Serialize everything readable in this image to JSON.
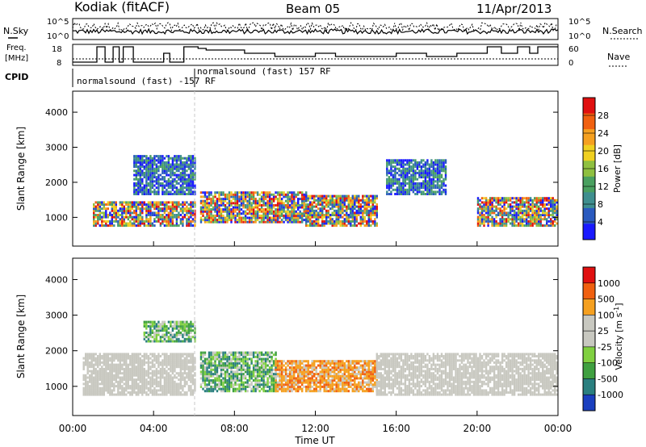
{
  "header": {
    "station": "Kodiak (fitACF)",
    "beam": "Beam 05",
    "date": "11/Apr/2013"
  },
  "panels": {
    "nsky": {
      "label": "N.Sky",
      "right_label": "N.Search",
      "ticks_left": [
        "10^5",
        "10^0"
      ],
      "ticks_right": [
        "10^5",
        "10^0"
      ]
    },
    "freq": {
      "label_line1": "Freq.",
      "label_line2": "[MHz]",
      "right_label": "Nave",
      "ticks_left": [
        "18",
        "8"
      ],
      "ticks_right": [
        "60",
        "0"
      ]
    },
    "cpid": {
      "label": "CPID",
      "programs": [
        "normalsound (fast) -157 RF",
        "normalsound (fast) 157 RF"
      ]
    }
  },
  "chart_data": [
    {
      "type": "heatmap",
      "title": "",
      "xlabel": "",
      "ylabel": "Slant Range [km]",
      "y_ticks": [
        1000,
        2000,
        3000,
        4000
      ],
      "ylim": [
        180,
        4600
      ],
      "colorbar": {
        "label": "Power [dB]",
        "ticks": [
          "28",
          "24",
          "20",
          "16",
          "12",
          "8",
          "4"
        ],
        "range": [
          0,
          30
        ],
        "colors": [
          "#1a1aff",
          "#2a5abf",
          "#3f8f8f",
          "#4aa060",
          "#8fc040",
          "#f0d020",
          "#f5a020",
          "#f06010",
          "#e01010"
        ]
      },
      "scatter_bands": [
        {
          "t_start": 1.0,
          "t_end": 6.0,
          "r_low": 800,
          "r_high": 1500,
          "level": "high"
        },
        {
          "t_start": 6.3,
          "t_end": 11.5,
          "r_low": 900,
          "r_high": 1800,
          "level": "high"
        },
        {
          "t_start": 11.5,
          "t_end": 15.0,
          "r_low": 800,
          "r_high": 1700,
          "level": "high"
        },
        {
          "t_start": 15.5,
          "t_end": 18.5,
          "r_low": 1700,
          "r_high": 2700,
          "level": "mid"
        },
        {
          "t_start": 20.0,
          "t_end": 24.0,
          "r_low": 800,
          "r_high": 1600,
          "level": "high"
        },
        {
          "t_start": 3.0,
          "t_end": 6.0,
          "r_low": 1700,
          "r_high": 2800,
          "level": "mid"
        }
      ]
    },
    {
      "type": "heatmap",
      "title": "",
      "xlabel": "Time UT",
      "ylabel": "Slant Range [km]",
      "y_ticks": [
        1000,
        2000,
        3000,
        4000
      ],
      "ylim": [
        180,
        4600
      ],
      "x_ticks": [
        "00:00",
        "04:00",
        "08:00",
        "12:00",
        "16:00",
        "20:00",
        "00:00"
      ],
      "xlim": [
        0,
        24
      ],
      "colorbar": {
        "label": "Velocity [m s",
        "label_sup": "-1",
        "label_end": "]",
        "ticks": [
          "1000",
          "500",
          "100",
          "25",
          "-25",
          "-100",
          "-500",
          "-1000"
        ],
        "range": [
          -1000,
          1000
        ],
        "colors": [
          "#1a3fbf",
          "#2a7f7f",
          "#3fa040",
          "#80d040",
          "#c8c8c0",
          "#c8c8c0",
          "#f5a020",
          "#f06010",
          "#e01010"
        ]
      },
      "scatter_bands": [
        {
          "t_start": 0.5,
          "t_end": 6.0,
          "r_low": 800,
          "r_high": 2000,
          "level": "gray"
        },
        {
          "t_start": 6.3,
          "t_end": 10.0,
          "r_low": 900,
          "r_high": 2000,
          "level": "green"
        },
        {
          "t_start": 10.0,
          "t_end": 15.0,
          "r_low": 900,
          "r_high": 1800,
          "level": "orange"
        },
        {
          "t_start": 15.0,
          "t_end": 24.0,
          "r_low": 800,
          "r_high": 2000,
          "level": "gray"
        },
        {
          "t_start": 3.5,
          "t_end": 6.0,
          "r_low": 2300,
          "r_high": 2900,
          "level": "green"
        }
      ]
    }
  ]
}
